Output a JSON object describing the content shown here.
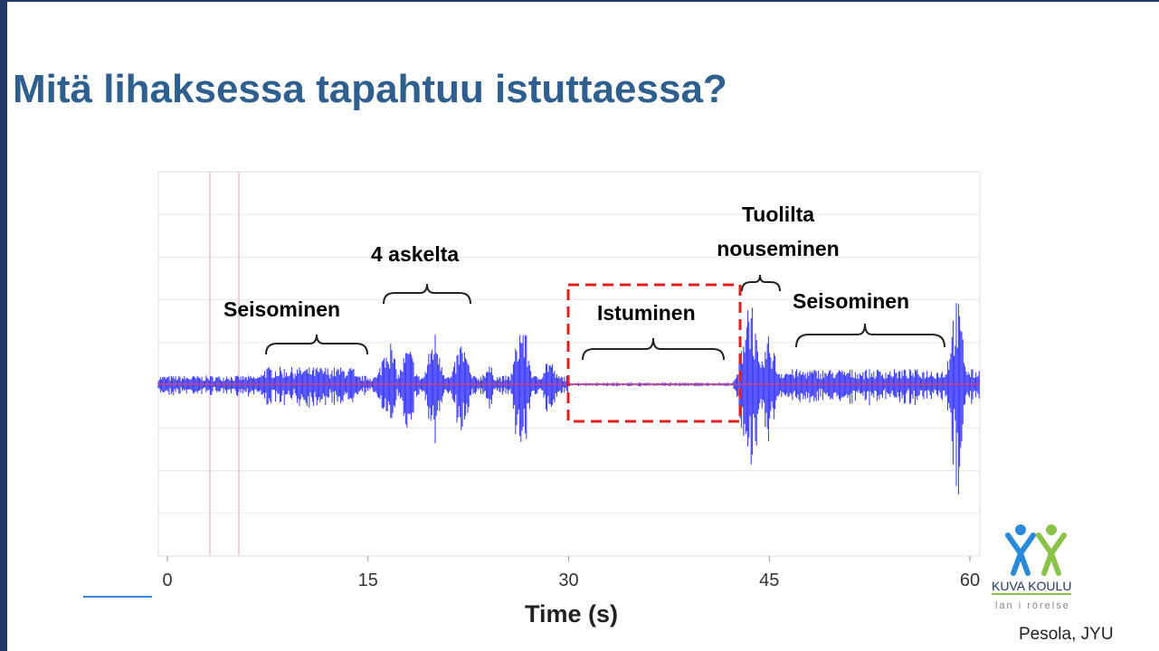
{
  "title": "Mitä lihaksessa tapahtuu istuttaessa?",
  "figure": {
    "x_label": "Time (s)",
    "xticks": [
      0,
      15,
      30,
      45,
      60
    ],
    "annotations": [
      "Seisominen",
      "4 askelta",
      "Istuminen",
      "Tuolilta nouseminen",
      "Seisominen"
    ]
  },
  "logo": {
    "name": "KUVA KOULU",
    "tagline": "lan i rörelse"
  },
  "credit": "Pesola, JYU"
}
